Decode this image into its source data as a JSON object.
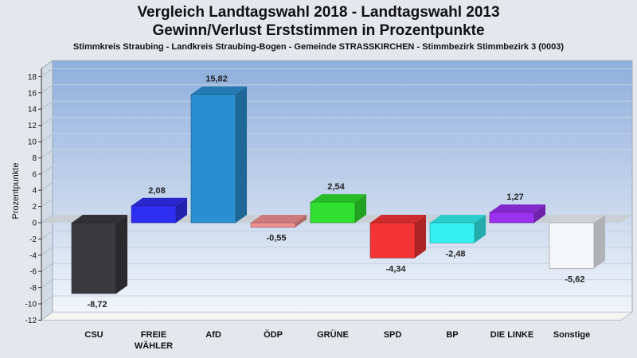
{
  "title_line1": "Vergleich Landtagswahl 2018 - Landtagswahl 2013",
  "title_line2": "Gewinn/Verlust Erststimmen in Prozentpunkte",
  "subtitle": "Stimmkreis Straubing - Landkreis Straubing-Bogen - Gemeinde STRASSKIRCHEN - Stimmbezirk Stimmbezirk 3 (0003)",
  "chart_data": {
    "type": "bar",
    "title": "Vergleich Landtagswahl 2018 - Landtagswahl 2013",
    "ylabel": "Prozentpunkte",
    "xlabel": "",
    "ylim": [
      -12,
      19
    ],
    "yticks": [
      -12,
      -10,
      -8,
      -6,
      -4,
      -2,
      0,
      2,
      4,
      6,
      8,
      10,
      12,
      14,
      16,
      18
    ],
    "grid": true,
    "categories": [
      {
        "name": "CSU",
        "lines": [
          "CSU"
        ]
      },
      {
        "name": "FREIE WÄHLER",
        "lines": [
          "FREIE",
          "WÄHLER"
        ]
      },
      {
        "name": "AfD",
        "lines": [
          "AfD"
        ]
      },
      {
        "name": "ÖDP",
        "lines": [
          "ÖDP"
        ]
      },
      {
        "name": "GRÜNE",
        "lines": [
          "GRÜNE"
        ]
      },
      {
        "name": "SPD",
        "lines": [
          "SPD"
        ]
      },
      {
        "name": "BP",
        "lines": [
          "BP"
        ]
      },
      {
        "name": "DIE LINKE",
        "lines": [
          "DIE LINKE"
        ]
      },
      {
        "name": "Sonstige",
        "lines": [
          "Sonstige"
        ]
      }
    ],
    "values": [
      -8.72,
      2.08,
      15.82,
      -0.55,
      2.54,
      -4.34,
      -2.48,
      1.27,
      -5.62
    ],
    "value_labels": [
      "-8,72",
      "2,08",
      "15,82",
      "-0,55",
      "2,54",
      "-4,34",
      "-2,48",
      "1,27",
      "-5,62"
    ],
    "colors": [
      "#3a3a3e",
      "#2e2ef0",
      "#2a8fd0",
      "#f09090",
      "#30e030",
      "#f23434",
      "#34f0f0",
      "#9a30f0",
      "#f4f6fa"
    ]
  }
}
